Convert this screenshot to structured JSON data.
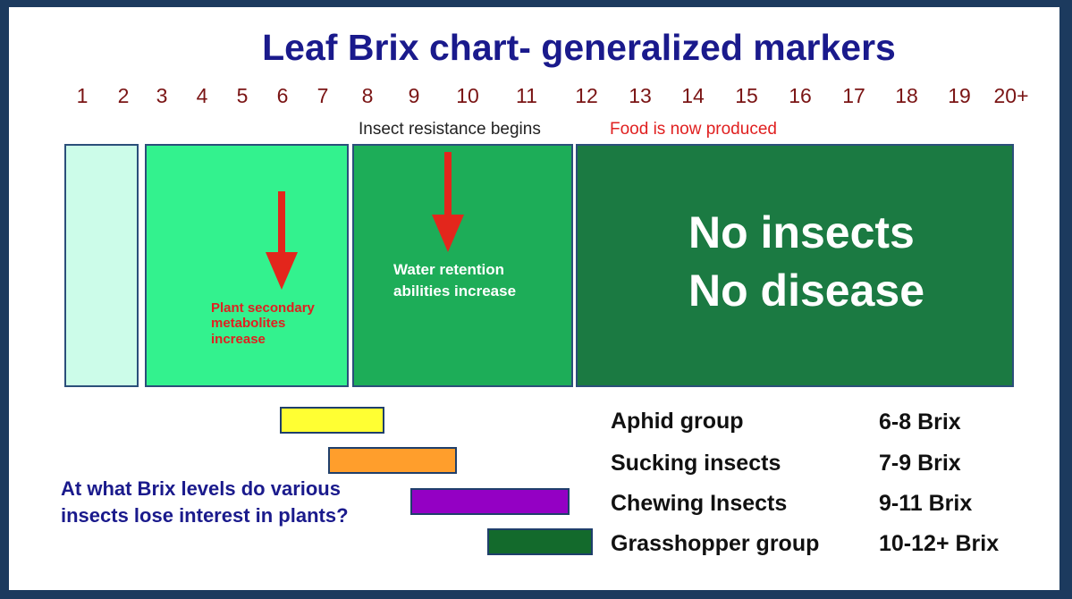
{
  "title": "Leaf Brix chart- generalized markers",
  "scale": [
    "1",
    "2",
    "3",
    "4",
    "5",
    "6",
    "7",
    "8",
    "9",
    "10",
    "11",
    "12",
    "13",
    "14",
    "15",
    "16",
    "17",
    "18",
    "19",
    "20+"
  ],
  "notes": {
    "insect_resistance": "Insect resistance begins",
    "food_produced": "Food is now produced"
  },
  "zones": [
    {
      "color": "#ccfce9"
    },
    {
      "color": "#33f28e",
      "text_lines": [
        "Plant secondary",
        "metabolites",
        "increase"
      ],
      "text_color": "#e02020"
    },
    {
      "color": "#1dad58",
      "text_lines": [
        "Water retention",
        "abilities increase"
      ],
      "text_color": "#ffffff"
    },
    {
      "color": "#1b7a42",
      "text_lines": [
        "No insects",
        "No disease"
      ],
      "text_color": "#ffffff"
    }
  ],
  "arrow_color": "#e3261c",
  "insects": [
    {
      "name": "Aphid group",
      "range": "6-8 Brix",
      "color": "#ffff33"
    },
    {
      "name": "Sucking insects",
      "range": "7-9 Brix",
      "color": "#ff9e2c"
    },
    {
      "name": "Chewing Insects",
      "range": "9-11 Brix",
      "color": "#9400c4"
    },
    {
      "name": "Grasshopper group",
      "range": "10-12+ Brix",
      "color": "#136a2c"
    }
  ],
  "question": "At what Brix levels do various insects lose interest in plants?"
}
